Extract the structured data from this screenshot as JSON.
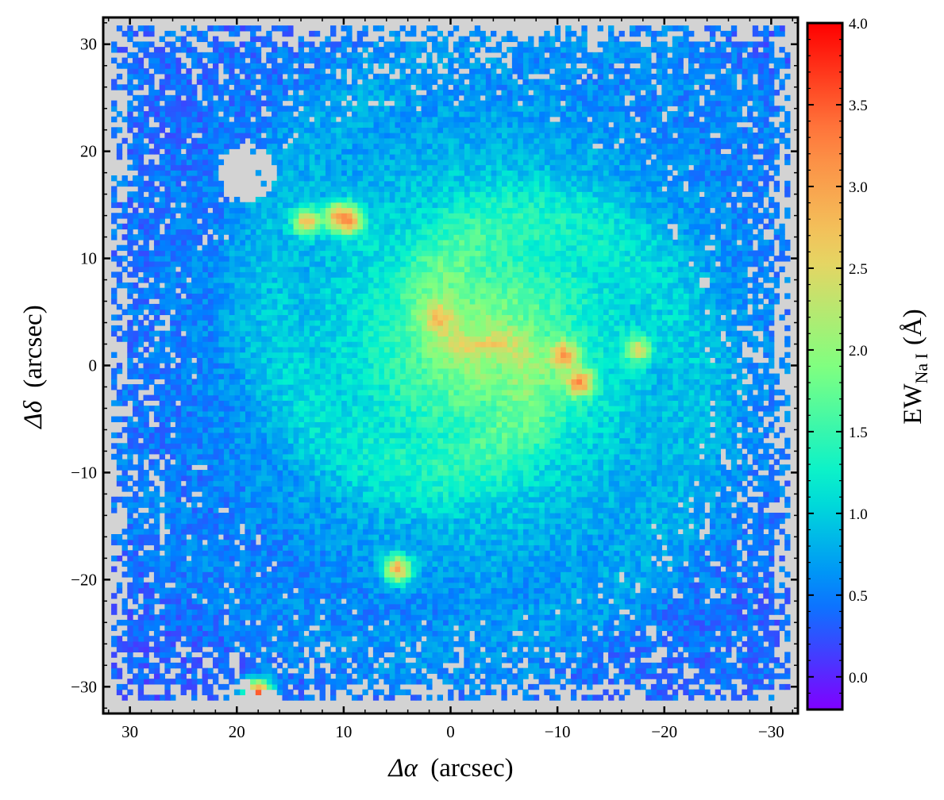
{
  "chart_data": {
    "type": "heatmap",
    "title": "",
    "xlabel": "Δα (arcsec)",
    "xlabel_symbol": "Δα",
    "xlabel_unit": "(arcsec)",
    "ylabel": "Δδ (arcsec)",
    "ylabel_symbol": "Δδ",
    "ylabel_unit": "(arcsec)",
    "colorbar_label": "EW_Na I (Å)",
    "colorbar_label_main": "EW",
    "colorbar_label_sub": "Na I",
    "colorbar_label_unit": "(Å)",
    "xlim": [
      32.5,
      -32.5
    ],
    "ylim": [
      -32.5,
      32.5
    ],
    "clim": [
      -0.2,
      4.0
    ],
    "x_inverted": true,
    "xticks": [
      30,
      20,
      10,
      0,
      -10,
      -20,
      -30
    ],
    "xtick_labels": [
      "30",
      "20",
      "10",
      "0",
      "−10",
      "−20",
      "−30"
    ],
    "yticks": [
      30,
      20,
      10,
      0,
      -10,
      -20,
      -30
    ],
    "ytick_labels": [
      "30",
      "20",
      "10",
      "0",
      "−10",
      "−20",
      "−30"
    ],
    "colorbar_ticks": [
      0.0,
      0.5,
      1.0,
      1.5,
      2.0,
      2.5,
      3.0,
      3.5,
      4.0
    ],
    "colorbar_tick_labels": [
      "0.0",
      "0.5",
      "1.0",
      "1.5",
      "2.0",
      "2.5",
      "3.0",
      "3.5",
      "4.0"
    ],
    "colormap": "rainbow",
    "colormap_stops": [
      "#8000ff",
      "#0080ff",
      "#00f0d0",
      "#80ff80",
      "#f0d060",
      "#ff8040",
      "#ff0000"
    ],
    "missing_color": "#d3d3d3",
    "grid": false,
    "pixel_size_arcsec": 0.5,
    "field_extent_arcsec": {
      "x": [
        -31.5,
        31.5
      ],
      "y": [
        -31.0,
        31.5
      ]
    },
    "structure": {
      "description_values": "EW map of a face-on spiral galaxy; central values ~2.0-2.6 Å, arms ~1.4-2.0 Å, outskirts ~0.0-0.7 Å",
      "central_region": {
        "x": -3,
        "y": 2,
        "ew": 2.4
      },
      "hotspots": [
        {
          "x": 13.5,
          "y": 13.5,
          "ew": 3.0
        },
        {
          "x": 10.5,
          "y": 14.0,
          "ew": 3.2
        },
        {
          "x": 9.5,
          "y": 13.5,
          "ew": 3.1
        },
        {
          "x": 1.0,
          "y": 4.5,
          "ew": 2.8
        },
        {
          "x": -10.5,
          "y": 1.0,
          "ew": 3.2
        },
        {
          "x": -12.0,
          "y": -1.5,
          "ew": 3.4
        },
        {
          "x": 5.0,
          "y": -19.0,
          "ew": 3.1
        },
        {
          "x": 18.0,
          "y": -30.5,
          "ew": 3.6
        },
        {
          "x": -17.5,
          "y": 1.5,
          "ew": 2.6
        }
      ],
      "gap_region": {
        "x": 19.0,
        "y": 18.0
      }
    }
  }
}
